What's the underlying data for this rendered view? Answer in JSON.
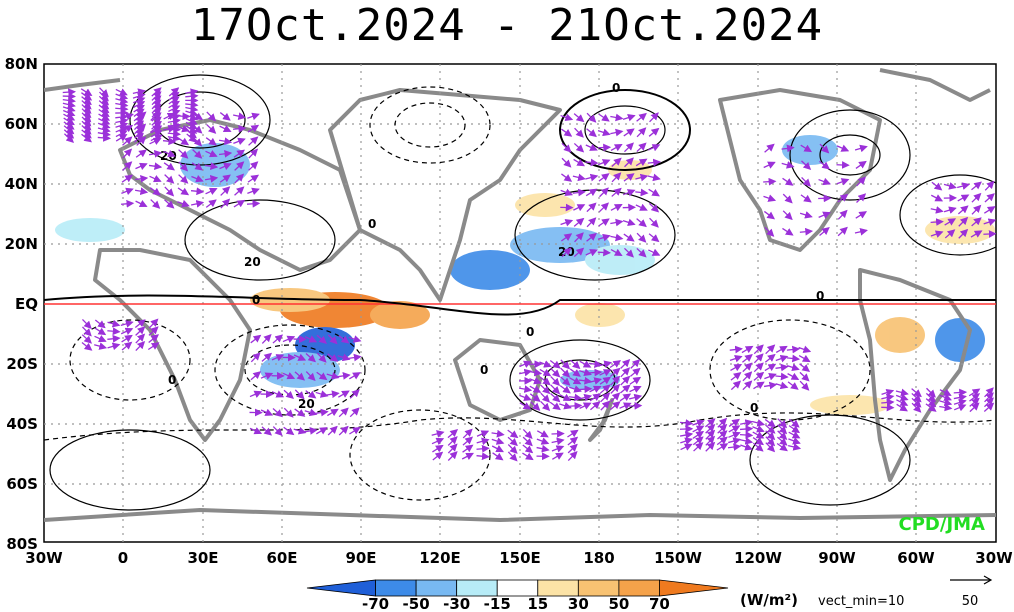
{
  "title": "17Oct.2024 - 21Oct.2024",
  "credit": "CPD/JMA",
  "colors": {
    "credit": "#22dd22",
    "equator": "#ff3333",
    "land": "#8a8a8a",
    "vector": "#9b30d9",
    "contour": "#000000"
  },
  "lat_labels": [
    "80N",
    "60N",
    "40N",
    "20N",
    "EQ",
    "20S",
    "40S",
    "60S",
    "80S"
  ],
  "lon_labels": [
    "30W",
    "0",
    "30E",
    "60E",
    "90E",
    "120E",
    "150E",
    "180",
    "150W",
    "120W",
    "90W",
    "60W",
    "30W"
  ],
  "colorbar": {
    "units": "(W/m²)",
    "vector_note": "vect_min=10",
    "ticks": [
      "-70",
      "-50",
      "-30",
      "-15",
      "15",
      "30",
      "50",
      "70"
    ],
    "colors": [
      "#1f5fd8",
      "#3d8be8",
      "#78b9f2",
      "#b7ecf7",
      "#ffffff",
      "#fce3a6",
      "#f8c272",
      "#f5a24a",
      "#ef7a1f"
    ]
  },
  "reference_vector": {
    "label": "50",
    "icon": "right-arrow-icon"
  },
  "contour_labels": [
    "0",
    "0",
    "0",
    "0",
    "0",
    "0",
    "0",
    "0",
    "20",
    "20",
    "20",
    "20"
  ],
  "map_grid": {
    "lat_range": [
      -80,
      80
    ],
    "lon_range": [
      -30,
      330
    ],
    "dotted_grid": true
  }
}
